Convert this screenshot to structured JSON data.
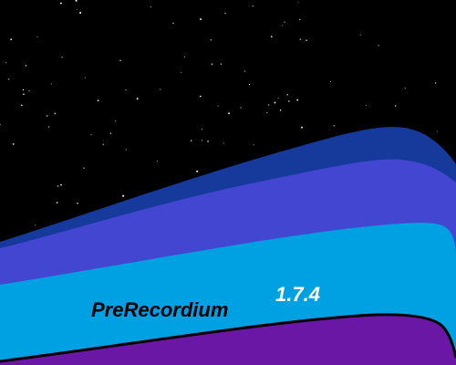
{
  "splash": {
    "app_name": "PreRecordium",
    "version": "1.7.4"
  },
  "colors": {
    "sky": "#000000",
    "stars": "#ffffff",
    "band_navy": "#163a9c",
    "band_indigo": "#4346d1",
    "band_cyan": "#00a1e3",
    "band_purple": "#6b17a6",
    "app_name_text": "#000000",
    "version_text": "#ffffff"
  }
}
